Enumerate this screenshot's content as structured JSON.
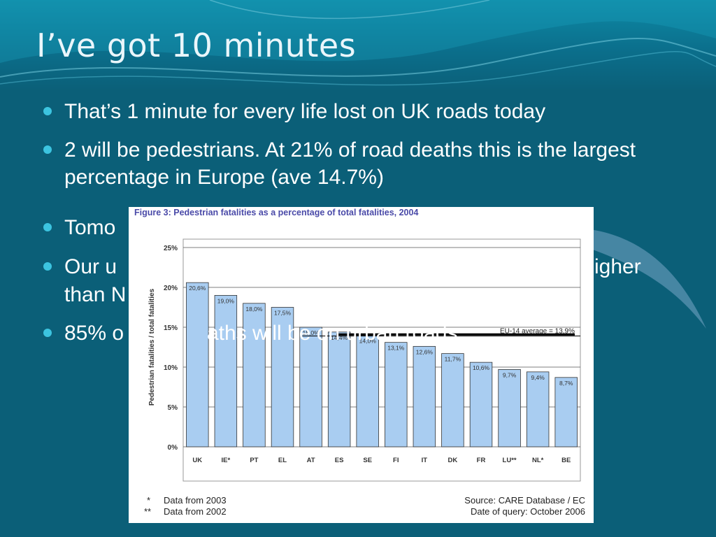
{
  "slide": {
    "title": "I’ve got 10 minutes",
    "bullets": [
      "That’s 1 minute for every life lost on UK roads today",
      "2 will be pedestrians. At 21% of road deaths this is the largest percentage in Europe (ave 14.7%)",
      "Tomo",
      "Our u",
      "than N",
      "85% o"
    ],
    "bullet_fragments": {
      "b4_right": "igher",
      "b5_mid": "aths will be on urban roads"
    },
    "colors": {
      "background": "#0b5f78",
      "bullet": "#3cc4e0",
      "bar": "#a9cdf1",
      "avg_line": "#000000"
    }
  },
  "chart_data": {
    "type": "bar",
    "title": "Figure 3: Pedestrian fatalities as a percentage of total fatalities, 2004",
    "ylabel": "Pedestrian fatalities / total fatalities",
    "categories": [
      "UK",
      "IE*",
      "PT",
      "EL",
      "AT",
      "ES",
      "SE",
      "FI",
      "IT",
      "DK",
      "FR",
      "LU**",
      "NL*",
      "BE"
    ],
    "values": [
      20.6,
      19.0,
      18.0,
      17.5,
      15.0,
      14.4,
      14.0,
      13.1,
      12.6,
      11.7,
      10.6,
      9.7,
      9.4,
      8.7
    ],
    "value_labels": [
      "20,6%",
      "19,0%",
      "18,0%",
      "17,5%",
      "15,0%",
      "14,4%",
      "14,0%",
      "13,1%",
      "12,6%",
      "11,7%",
      "10,6%",
      "9,7%",
      "9,4%",
      "8,7%"
    ],
    "ylim": [
      0,
      25
    ],
    "yticks": [
      0,
      5,
      10,
      15,
      20,
      25
    ],
    "ytick_labels": [
      "0%",
      "5%",
      "10%",
      "15%",
      "20%",
      "25%"
    ],
    "average": {
      "value": 13.9,
      "label": "EU-14 average = 13,9%"
    },
    "overlay_line": {
      "value": 14.1
    },
    "grid": true,
    "footnotes": [
      {
        "mark": "*",
        "text": "Data from 2003"
      },
      {
        "mark": "**",
        "text": "Data from 2002"
      }
    ],
    "source": "Source: CARE Database / EC",
    "query_date": "Date of query: October 2006"
  }
}
